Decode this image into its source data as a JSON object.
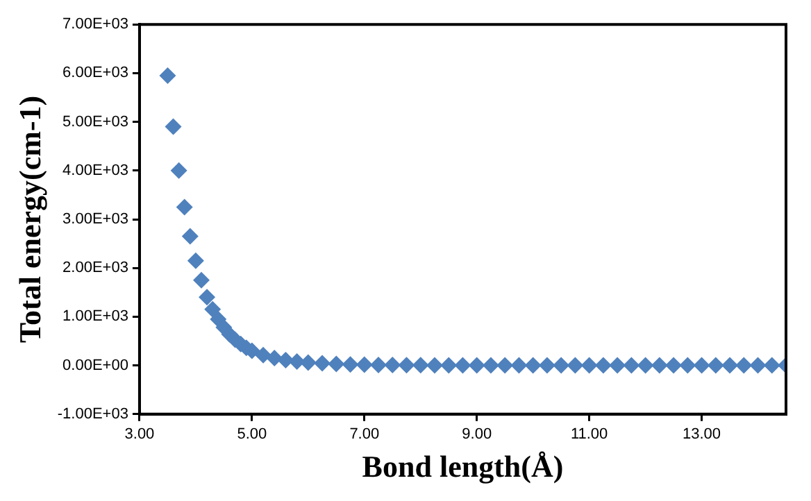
{
  "chart_data": {
    "type": "scatter",
    "xlabel": "Bond length(Å)",
    "ylabel": "Total energy(cm-1)",
    "x": [
      3.5,
      3.6,
      3.7,
      3.8,
      3.9,
      4.0,
      4.1,
      4.2,
      4.3,
      4.4,
      4.5,
      4.6,
      4.7,
      4.8,
      4.9,
      5.0,
      5.2,
      5.4,
      5.6,
      5.8,
      6.0,
      6.25,
      6.5,
      6.75,
      7.0,
      7.25,
      7.5,
      7.75,
      8.0,
      8.25,
      8.5,
      8.75,
      9.0,
      9.25,
      9.5,
      9.75,
      10.0,
      10.25,
      10.5,
      10.75,
      11.0,
      11.25,
      11.5,
      11.75,
      12.0,
      12.25,
      12.5,
      12.75,
      13.0,
      13.25,
      13.5,
      13.75,
      14.0,
      14.25,
      14.5
    ],
    "series": [
      {
        "color": "#4f81bd",
        "values": [
          5950,
          4900,
          4000,
          3250,
          2650,
          2150,
          1750,
          1400,
          1150,
          950,
          780,
          640,
          530,
          440,
          360,
          300,
          210,
          150,
          110,
          80,
          60,
          45,
          30,
          20,
          15,
          10,
          10,
          5,
          5,
          0,
          0,
          0,
          0,
          0,
          0,
          0,
          0,
          0,
          0,
          0,
          0,
          0,
          0,
          0,
          0,
          0,
          0,
          0,
          0,
          0,
          0,
          0,
          0,
          0,
          0
        ]
      }
    ],
    "xlim": [
      3,
      14.5
    ],
    "xticks": [
      {
        "value": 3,
        "label": "3.00"
      },
      {
        "value": 5,
        "label": "5.00"
      },
      {
        "value": 7,
        "label": "7.00"
      },
      {
        "value": 9,
        "label": "9.00"
      },
      {
        "value": 11,
        "label": "11.00"
      },
      {
        "value": 13,
        "label": "13.00"
      }
    ],
    "ylim": [
      -1000,
      7000
    ],
    "yticks": [
      {
        "value": -1000,
        "label": "-1.00E+03"
      },
      {
        "value": 0,
        "label": "0.00E+00"
      },
      {
        "value": 1000,
        "label": "1.00E+03"
      },
      {
        "value": 2000,
        "label": "2.00E+03"
      },
      {
        "value": 3000,
        "label": "3.00E+03"
      },
      {
        "value": 4000,
        "label": "4.00E+03"
      },
      {
        "value": 5000,
        "label": "5.00E+03"
      },
      {
        "value": 6000,
        "label": "6.00E+03"
      },
      {
        "value": 7000,
        "label": "7.00E+03"
      }
    ],
    "grid": false,
    "legend": false,
    "marker": "diamond"
  }
}
